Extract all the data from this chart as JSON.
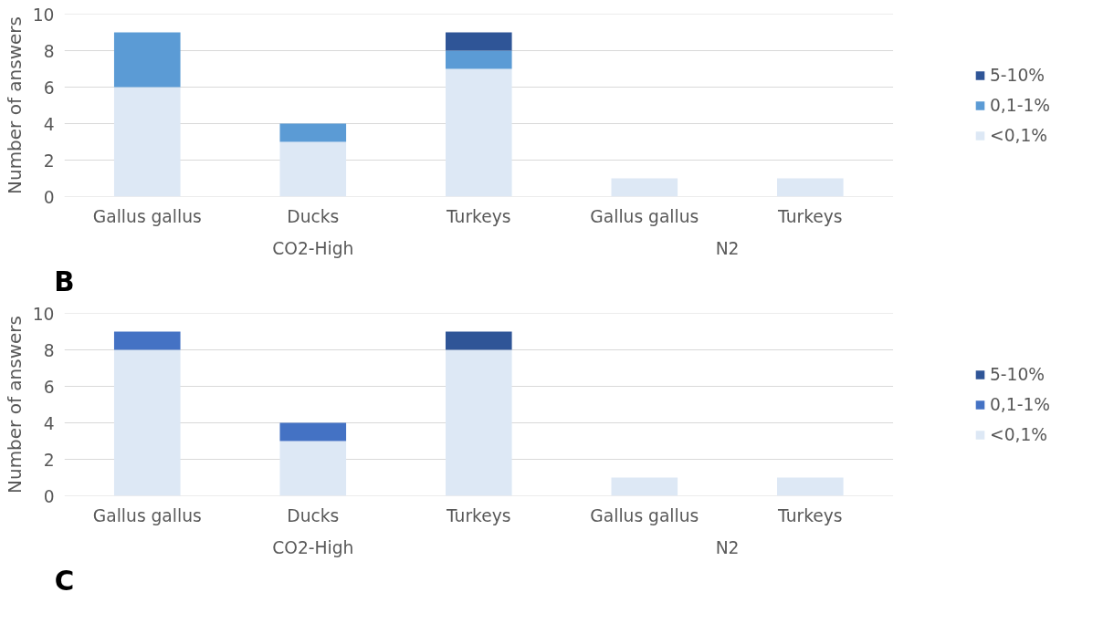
{
  "chart_data": [
    {
      "type": "bar",
      "stacked": true,
      "ylabel": "Number of answers",
      "categories": [
        "Gallus gallus",
        "Ducks",
        "Turkeys",
        "Gallus gallus",
        "Turkeys"
      ],
      "ylim": [
        0,
        10
      ],
      "yticks": [
        0,
        2,
        4,
        6,
        8,
        10
      ],
      "grid": "y",
      "legend": "right",
      "annotations": [
        "CO2-High",
        "N2",
        "B"
      ],
      "series": [
        {
          "name": "<0,1%",
          "color": "#dde8f5",
          "values": [
            6,
            3,
            7,
            1,
            1
          ]
        },
        {
          "name": "0,1-1%",
          "color": "#5b9bd5",
          "values": [
            3,
            1,
            1,
            0,
            0
          ]
        },
        {
          "name": "5-10%",
          "color": "#2f5597",
          "values": [
            0,
            0,
            1,
            0,
            0
          ]
        }
      ]
    },
    {
      "type": "bar",
      "stacked": true,
      "ylabel": "Number of answers",
      "categories": [
        "Gallus gallus",
        "Ducks",
        "Turkeys",
        "Gallus gallus",
        "Turkeys"
      ],
      "ylim": [
        0,
        10
      ],
      "yticks": [
        0,
        2,
        4,
        6,
        8,
        10
      ],
      "grid": "y",
      "legend": "right",
      "annotations": [
        "CO2-High",
        "N2",
        "C"
      ],
      "series": [
        {
          "name": "<0,1%",
          "color": "#dde8f5",
          "values": [
            8,
            3,
            8,
            1,
            1
          ]
        },
        {
          "name": "0,1-1%",
          "color": "#4472c4",
          "values": [
            1,
            1,
            0,
            0,
            0
          ]
        },
        {
          "name": "5-10%",
          "color": "#2f5597",
          "values": [
            0,
            0,
            1,
            0,
            0
          ]
        }
      ]
    }
  ]
}
